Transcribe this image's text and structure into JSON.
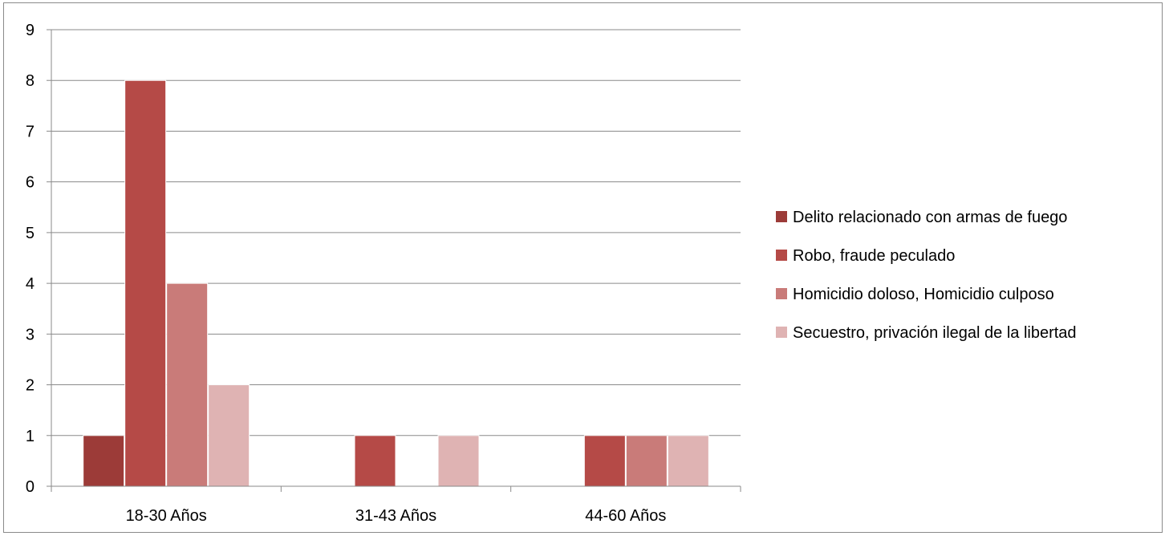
{
  "chart_data": {
    "type": "bar",
    "categories": [
      "18-30 Años",
      "31-43 Años",
      "44-60 Años"
    ],
    "series": [
      {
        "name": "Delito relacionado con armas de fuego",
        "color": "#9c3b38",
        "values": [
          1,
          0,
          0
        ]
      },
      {
        "name": "Robo, fraude peculado",
        "color": "#b54a47",
        "values": [
          8,
          1,
          1
        ]
      },
      {
        "name": "Homicidio doloso, Homicidio culposo",
        "color": "#c97b79",
        "values": [
          4,
          0,
          1
        ]
      },
      {
        "name": "Secuestro, privación ilegal de la libertad",
        "color": "#dfb3b3",
        "values": [
          2,
          1,
          1
        ]
      }
    ],
    "ylim": [
      0,
      9
    ],
    "yticks": [
      0,
      1,
      2,
      3,
      4,
      5,
      6,
      7,
      8,
      9
    ],
    "grid": true,
    "legend_position": "right"
  }
}
